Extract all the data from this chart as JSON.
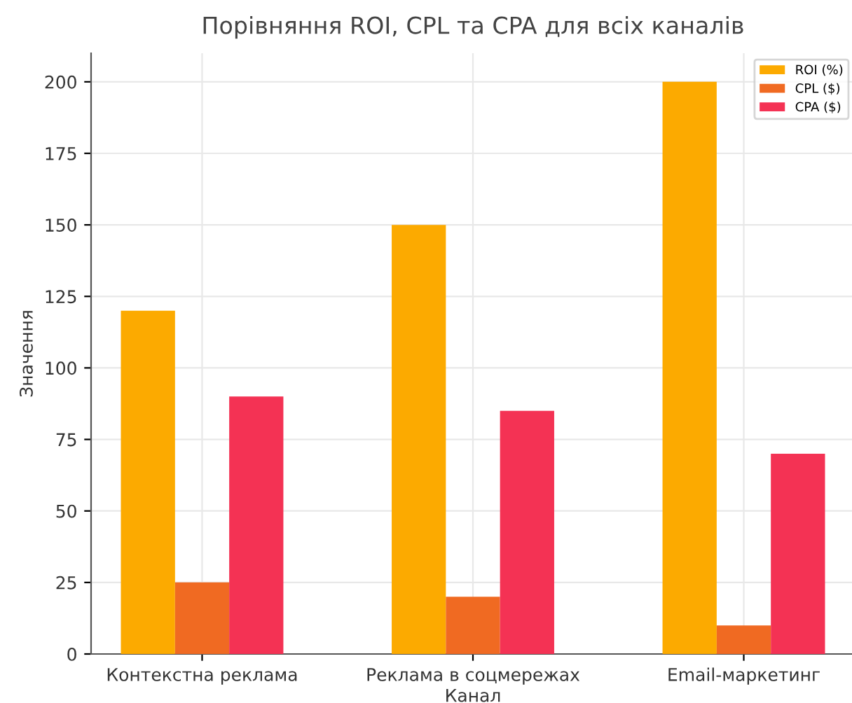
{
  "chart_data": {
    "type": "bar",
    "title": "Порівняння ROI, CPL та CPA для всіх каналів",
    "xlabel": "Канал",
    "ylabel": "Значення",
    "categories": [
      "Контекстна реклама",
      "Реклама в соцмережах",
      "Email-маркетинг"
    ],
    "series": [
      {
        "name": "ROI (%)",
        "color": "#fcaa00",
        "values": [
          120,
          150,
          200
        ]
      },
      {
        "name": "CPL ($)",
        "color": "#f06a22",
        "values": [
          25,
          20,
          10
        ]
      },
      {
        "name": "CPA ($)",
        "color": "#f43254",
        "values": [
          90,
          85,
          70
        ]
      }
    ],
    "ylim": [
      0,
      210
    ],
    "yticks": [
      0,
      25,
      50,
      75,
      100,
      125,
      150,
      175,
      200
    ],
    "grid": true,
    "legend": "top right"
  }
}
